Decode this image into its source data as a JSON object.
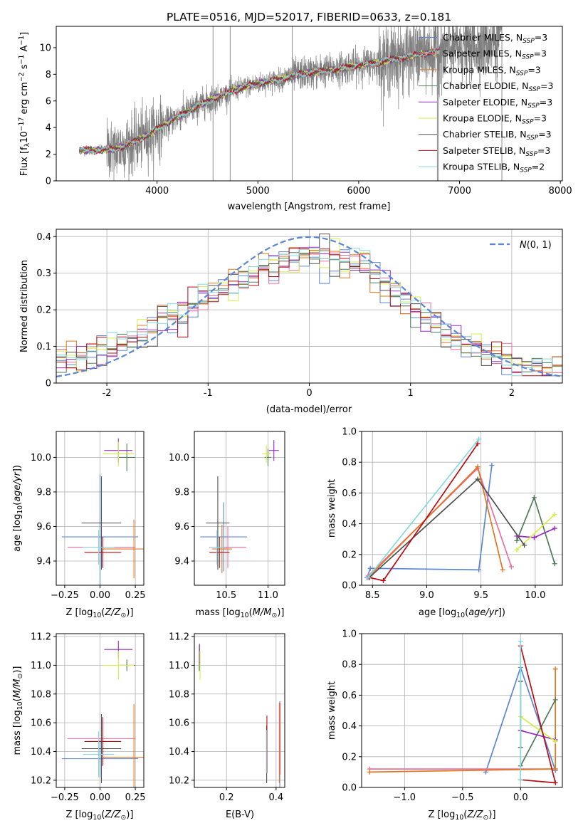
{
  "title": "PLATE=0516, MJD=52017, FIBERID=0633, z=0.181",
  "colors": {
    "Chabrier MILES": "#5b86d8",
    "Salpeter MILES": "#ee6e9e",
    "Kroupa MILES": "#e2761e",
    "Chabrier ELODIE": "#4f7d5a",
    "Salpeter ELODIE": "#9a2ac2",
    "Kroupa ELODIE": "#d5ee48",
    "Chabrier STELIB": "#505050",
    "Salpeter STELIB": "#b80d14",
    "Kroupa STELIB": "#86d8dc"
  },
  "chart_data": [
    {
      "id": "spectrum",
      "type": "line",
      "title": "PLATE=0516, MJD=52017, FIBERID=0633, z=0.181",
      "xlabel": "wavelength [Angstrom, rest frame]",
      "ylabel_parts": [
        "Flux [f",
        "λ",
        "10",
        "−17",
        " erg cm",
        "−2",
        " s",
        "−1",
        " A",
        "−1",
        "]"
      ],
      "xlim": [
        3000,
        8020
      ],
      "ylim": [
        0,
        11.6
      ],
      "xticks": [
        4000,
        5000,
        6000,
        7000,
        8000
      ],
      "yticks": [
        0,
        2,
        4,
        6,
        8,
        10
      ],
      "grid": false,
      "legend_position": "upper-right",
      "legend": [
        {
          "name": "Chabrier MILES",
          "nssp": "3"
        },
        {
          "name": "Salpeter MILES",
          "nssp": "3"
        },
        {
          "name": "Kroupa MILES",
          "nssp": "3"
        },
        {
          "name": "Chabrier ELODIE",
          "nssp": "3"
        },
        {
          "name": "Salpeter ELODIE",
          "nssp": "3"
        },
        {
          "name": "Kroupa ELODIE",
          "nssp": "3"
        },
        {
          "name": "Chabrier STELIB",
          "nssp": "3"
        },
        {
          "name": "Salpeter STELIB",
          "nssp": "3"
        },
        {
          "name": "Kroupa STELIB",
          "nssp": "2"
        }
      ],
      "observed_trend": {
        "wavelength": [
          3230,
          3400,
          3600,
          3800,
          4000,
          4200,
          4400,
          4600,
          4800,
          5000,
          5200,
          5400,
          5600,
          5800,
          6000,
          6200,
          6400,
          6600,
          6800,
          7000,
          7200,
          7400
        ],
        "flux": [
          2.3,
          2.3,
          2.4,
          3.0,
          3.9,
          4.8,
          5.6,
          6.3,
          6.9,
          7.3,
          7.6,
          8.0,
          8.2,
          8.4,
          8.7,
          8.9,
          9.2,
          9.5,
          9.7,
          10.0,
          10.2,
          10.6
        ]
      },
      "model_range": [
        3230,
        6800
      ]
    },
    {
      "id": "residuals",
      "type": "line",
      "xlabel": "(data-model)/error",
      "ylabel": "Normed distribution",
      "xlim": [
        -2.5,
        2.5
      ],
      "ylim": [
        0,
        0.42
      ],
      "xticks": [
        -2,
        -1,
        0,
        1,
        2
      ],
      "yticks": [
        0.0,
        0.1,
        0.2,
        0.3,
        0.4
      ],
      "grid": true,
      "legend_position": "upper-right",
      "legend": [
        "N(0,1)"
      ],
      "bin_width": 0.1,
      "histogram_envelope": {
        "x": [
          -2.5,
          -2.0,
          -1.5,
          -1.0,
          -0.5,
          0.0,
          0.5,
          1.0,
          1.5,
          2.0,
          2.5
        ],
        "y": [
          0.05,
          0.09,
          0.16,
          0.24,
          0.31,
          0.36,
          0.33,
          0.21,
          0.11,
          0.06,
          0.04
        ]
      }
    },
    {
      "id": "age-vs-Z",
      "type": "scatter",
      "xlabel_parts": [
        "Z [log",
        "10",
        "(Z/Z",
        "⊙",
        ")]"
      ],
      "ylabel_parts": [
        "age  [log",
        "10",
        "(age/yr)]"
      ],
      "xlim": [
        -0.31,
        0.31
      ],
      "ylim": [
        9.26,
        10.15
      ],
      "xticks": [
        -0.25,
        0.0,
        0.25
      ],
      "xticklabels": [
        "−0.25",
        "0.00",
        "0.25"
      ],
      "yticks": [
        9.4,
        9.6,
        9.8,
        10.0
      ],
      "yticklabels": [
        "9.4",
        "9.6",
        "9.8",
        "10.0"
      ],
      "points": [
        {
          "model": "Chabrier MILES",
          "x": 0.0,
          "y": 9.54,
          "xerr": 0.27,
          "yerr": 0.36
        },
        {
          "model": "Salpeter MILES",
          "x": 0.01,
          "y": 9.48,
          "xerr": 0.24,
          "yerr": 0.1
        },
        {
          "model": "Kroupa MILES",
          "x": 0.24,
          "y": 9.47,
          "xerr": 0.22,
          "yerr": 0.17
        },
        {
          "model": "Chabrier ELODIE",
          "x": 0.19,
          "y": 10.0,
          "xerr": 0.06,
          "yerr": 0.08
        },
        {
          "model": "Salpeter ELODIE",
          "x": 0.13,
          "y": 10.04,
          "xerr": 0.1,
          "yerr": 0.07
        },
        {
          "model": "Kroupa ELODIE",
          "x": 0.13,
          "y": 10.02,
          "xerr": 0.11,
          "yerr": 0.07
        },
        {
          "model": "Chabrier STELIB",
          "x": 0.01,
          "y": 9.62,
          "xerr": 0.14,
          "yerr": 0.27
        },
        {
          "model": "Salpeter STELIB",
          "x": 0.02,
          "y": 9.45,
          "xerr": 0.13,
          "yerr": 0.09
        },
        {
          "model": "Kroupa STELIB",
          "x": -0.01,
          "y": 9.48,
          "xerr": 0.11,
          "yerr": 0.1
        }
      ]
    },
    {
      "id": "age-vs-mass",
      "type": "scatter",
      "xlabel_parts": [
        "mass [log",
        "10",
        "(M/M",
        "⊙",
        ")]"
      ],
      "ylabel_parts": [],
      "xlim": [
        10.12,
        11.2
      ],
      "ylim": [
        9.26,
        10.15
      ],
      "xticks": [
        10.5,
        11.0
      ],
      "xticklabels": [
        "10.5",
        "11.0"
      ],
      "yticks": [
        9.4,
        9.6,
        9.8,
        10.0
      ],
      "yticklabels": [
        "9.4",
        "9.6",
        "9.8",
        "10.0"
      ],
      "points": [
        {
          "model": "Chabrier MILES",
          "x": 10.47,
          "y": 9.54,
          "xerr": 0.28,
          "yerr": 0.2
        },
        {
          "model": "Salpeter MILES",
          "x": 10.52,
          "y": 9.48,
          "xerr": 0.22,
          "yerr": 0.12
        },
        {
          "model": "Kroupa MILES",
          "x": 10.45,
          "y": 9.47,
          "xerr": 0.12,
          "yerr": 0.14
        },
        {
          "model": "Chabrier ELODIE",
          "x": 11.0,
          "y": 10.0,
          "xerr": 0.04,
          "yerr": 0.05
        },
        {
          "model": "Salpeter ELODIE",
          "x": 11.07,
          "y": 10.04,
          "xerr": 0.06,
          "yerr": 0.06
        },
        {
          "model": "Kroupa ELODIE",
          "x": 10.98,
          "y": 10.02,
          "xerr": 0.05,
          "yerr": 0.05
        },
        {
          "model": "Chabrier STELIB",
          "x": 10.4,
          "y": 9.62,
          "xerr": 0.14,
          "yerr": 0.27
        },
        {
          "model": "Salpeter STELIB",
          "x": 10.42,
          "y": 9.45,
          "xerr": 0.12,
          "yerr": 0.09
        },
        {
          "model": "Kroupa STELIB",
          "x": 10.39,
          "y": 9.48,
          "xerr": 0.08,
          "yerr": 0.1
        }
      ]
    },
    {
      "id": "weight-vs-age",
      "type": "line",
      "xlabel_parts": [
        "age  [log",
        "10",
        "(age/yr)]"
      ],
      "ylabel": "mass weight",
      "xlim": [
        8.4,
        10.25
      ],
      "ylim": [
        0,
        1.0
      ],
      "xticks": [
        8.5,
        9.0,
        9.5,
        10.0
      ],
      "xticklabels": [
        "8.5",
        "9.0",
        "9.5",
        "10.0"
      ],
      "yticks": [
        0.0,
        0.2,
        0.4,
        0.6,
        0.8,
        1.0
      ],
      "yticklabels": [
        "0.0",
        "0.2",
        "0.4",
        "0.6",
        "0.8",
        "1.0"
      ],
      "grid": true,
      "series": [
        {
          "model": "Chabrier MILES",
          "points": [
            [
              8.45,
              0.05
            ],
            [
              8.48,
              0.11
            ],
            [
              9.48,
              0.1
            ],
            [
              9.6,
              0.78
            ]
          ]
        },
        {
          "model": "Salpeter MILES",
          "points": [
            [
              8.46,
              0.06
            ],
            [
              9.47,
              0.76
            ],
            [
              9.78,
              0.12
            ]
          ]
        },
        {
          "model": "Kroupa MILES",
          "points": [
            [
              8.46,
              0.05
            ],
            [
              9.47,
              0.77
            ],
            [
              9.7,
              0.1
            ]
          ]
        },
        {
          "model": "Chabrier ELODIE",
          "points": [
            [
              9.83,
              0.29
            ],
            [
              9.99,
              0.57
            ],
            [
              10.18,
              0.14
            ]
          ]
        },
        {
          "model": "Salpeter ELODIE",
          "points": [
            [
              9.83,
              0.32
            ],
            [
              9.99,
              0.31
            ],
            [
              10.18,
              0.37
            ]
          ]
        },
        {
          "model": "Kroupa ELODIE",
          "points": [
            [
              9.83,
              0.23
            ],
            [
              10.18,
              0.46
            ]
          ]
        },
        {
          "model": "Chabrier STELIB",
          "points": [
            [
              8.47,
              0.05
            ],
            [
              9.47,
              0.69
            ],
            [
              9.9,
              0.26
            ]
          ]
        },
        {
          "model": "Salpeter STELIB",
          "points": [
            [
              8.47,
              0.05
            ],
            [
              8.6,
              0.03
            ],
            [
              9.47,
              0.92
            ]
          ]
        },
        {
          "model": "Kroupa STELIB",
          "points": [
            [
              8.46,
              0.05
            ],
            [
              9.48,
              0.95
            ]
          ]
        }
      ]
    },
    {
      "id": "mass-vs-Z",
      "type": "scatter",
      "xlabel_parts": [
        "Z [log",
        "10",
        "(Z/Z",
        "⊙",
        ")]"
      ],
      "ylabel_parts": [
        "mass [log",
        "10",
        "(M/M",
        "⊙",
        ")]"
      ],
      "xlim": [
        -0.31,
        0.31
      ],
      "ylim": [
        10.15,
        11.22
      ],
      "xticks": [
        -0.25,
        0.0,
        0.25
      ],
      "xticklabels": [
        "−0.25",
        "0.00",
        "0.25"
      ],
      "yticks": [
        10.2,
        10.4,
        10.6,
        10.8,
        11.0,
        11.2
      ],
      "yticklabels": [
        "10.2",
        "10.4",
        "10.6",
        "10.8",
        "11.0",
        "11.2"
      ],
      "points": [
        {
          "model": "Chabrier MILES",
          "x": 0.0,
          "y": 10.35,
          "xerr": 0.27,
          "yerr": 0.13
        },
        {
          "model": "Salpeter MILES",
          "x": 0.01,
          "y": 10.49,
          "xerr": 0.24,
          "yerr": 0.08
        },
        {
          "model": "Kroupa MILES",
          "x": 0.24,
          "y": 10.36,
          "xerr": 0.22,
          "yerr": 0.37
        },
        {
          "model": "Chabrier ELODIE",
          "x": 0.19,
          "y": 11.0,
          "xerr": 0.06,
          "yerr": 0.04
        },
        {
          "model": "Salpeter ELODIE",
          "x": 0.13,
          "y": 11.11,
          "xerr": 0.1,
          "yerr": 0.06
        },
        {
          "model": "Kroupa ELODIE",
          "x": 0.13,
          "y": 11.0,
          "xerr": 0.11,
          "yerr": 0.1
        },
        {
          "model": "Chabrier STELIB",
          "x": 0.01,
          "y": 10.42,
          "xerr": 0.14,
          "yerr": 0.24
        },
        {
          "model": "Salpeter STELIB",
          "x": 0.02,
          "y": 10.47,
          "xerr": 0.13,
          "yerr": 0.17
        },
        {
          "model": "Kroupa STELIB",
          "x": -0.01,
          "y": 10.38,
          "xerr": 0.11,
          "yerr": 0.16
        }
      ]
    },
    {
      "id": "mass-vs-ebv",
      "type": "scatter",
      "xlabel": "E(B-V)",
      "ylabel_parts": [],
      "xlim": [
        0.07,
        0.435
      ],
      "ylim": [
        10.15,
        11.22
      ],
      "xticks": [
        0.2,
        0.4
      ],
      "xticklabels": [
        "0.2",
        "0.4"
      ],
      "yticks": [
        10.2,
        10.4,
        10.6,
        10.8,
        11.0,
        11.2
      ],
      "yticklabels": [
        "10.2",
        "10.4",
        "10.6",
        "10.8",
        "11.0",
        "11.2"
      ],
      "points": [
        {
          "model": "Chabrier MILES",
          "x": 0.415,
          "y": 10.45,
          "xerr": 0,
          "yerr": 0.3
        },
        {
          "model": "Salpeter MILES",
          "x": 0.417,
          "y": 10.49,
          "xerr": 0,
          "yerr": 0.25
        },
        {
          "model": "Kroupa MILES",
          "x": 0.413,
          "y": 10.46,
          "xerr": 0,
          "yerr": 0.28
        },
        {
          "model": "Chabrier ELODIE",
          "x": 0.09,
          "y": 11.05,
          "xerr": 0,
          "yerr": 0.09
        },
        {
          "model": "Salpeter ELODIE",
          "x": 0.091,
          "y": 11.08,
          "xerr": 0,
          "yerr": 0.07
        },
        {
          "model": "Kroupa ELODIE",
          "x": 0.093,
          "y": 11.0,
          "xerr": 0,
          "yerr": 0.1
        },
        {
          "model": "Chabrier STELIB",
          "x": 0.362,
          "y": 10.38,
          "xerr": 0,
          "yerr": 0.2
        },
        {
          "model": "Salpeter STELIB",
          "x": 0.363,
          "y": 10.45,
          "xerr": 0,
          "yerr": 0.2
        },
        {
          "model": "Kroupa STELIB",
          "x": 0.361,
          "y": 10.4,
          "xerr": 0,
          "yerr": 0.15
        }
      ]
    },
    {
      "id": "weight-vs-Z",
      "type": "line",
      "xlabel_parts": [
        "Z [log",
        "10",
        "(Z/Z",
        "⊙",
        ")]"
      ],
      "ylabel": "mass weight",
      "xlim": [
        -1.37,
        0.36
      ],
      "ylim": [
        0,
        1.0
      ],
      "xticks": [
        -1.0,
        -0.5,
        0.0
      ],
      "xticklabels": [
        "−1.0",
        "−0.5",
        "0.0"
      ],
      "yticks": [
        0.0,
        0.2,
        0.4,
        0.6,
        0.8,
        1.0
      ],
      "yticklabels": [
        "0.0",
        "0.2",
        "0.4",
        "0.6",
        "0.8",
        "1.0"
      ],
      "grid": true,
      "series": [
        {
          "model": "Chabrier MILES",
          "points": [
            [
              -0.3,
              0.1
            ],
            [
              0.0,
              0.78
            ],
            [
              0.3,
              0.11
            ]
          ]
        },
        {
          "model": "Salpeter MILES",
          "points": [
            [
              -1.3,
              0.12
            ],
            [
              0.3,
              0.12
            ]
          ]
        },
        {
          "model": "Kroupa MILES",
          "points": [
            [
              -1.3,
              0.1
            ],
            [
              0.3,
              0.12
            ],
            [
              0.3,
              0.77
            ]
          ]
        },
        {
          "model": "Chabrier ELODIE",
          "points": [
            [
              0.0,
              0.14
            ],
            [
              0.3,
              0.57
            ]
          ]
        },
        {
          "model": "Salpeter ELODIE",
          "points": [
            [
              0.0,
              0.37
            ],
            [
              0.3,
              0.31
            ]
          ]
        },
        {
          "model": "Kroupa ELODIE",
          "points": [
            [
              0.0,
              0.46
            ],
            [
              0.3,
              0.3
            ]
          ]
        },
        {
          "model": "Chabrier STELIB",
          "points": [
            [
              0.0,
              0.69
            ],
            [
              0.0,
              0.26
            ]
          ]
        },
        {
          "model": "Salpeter STELIB",
          "points": [
            [
              0.0,
              0.05
            ],
            [
              0.3,
              0.03
            ],
            [
              0.0,
              0.92
            ]
          ]
        },
        {
          "model": "Kroupa STELIB",
          "points": [
            [
              0.0,
              0.05
            ],
            [
              0.0,
              0.95
            ]
          ]
        }
      ]
    }
  ]
}
